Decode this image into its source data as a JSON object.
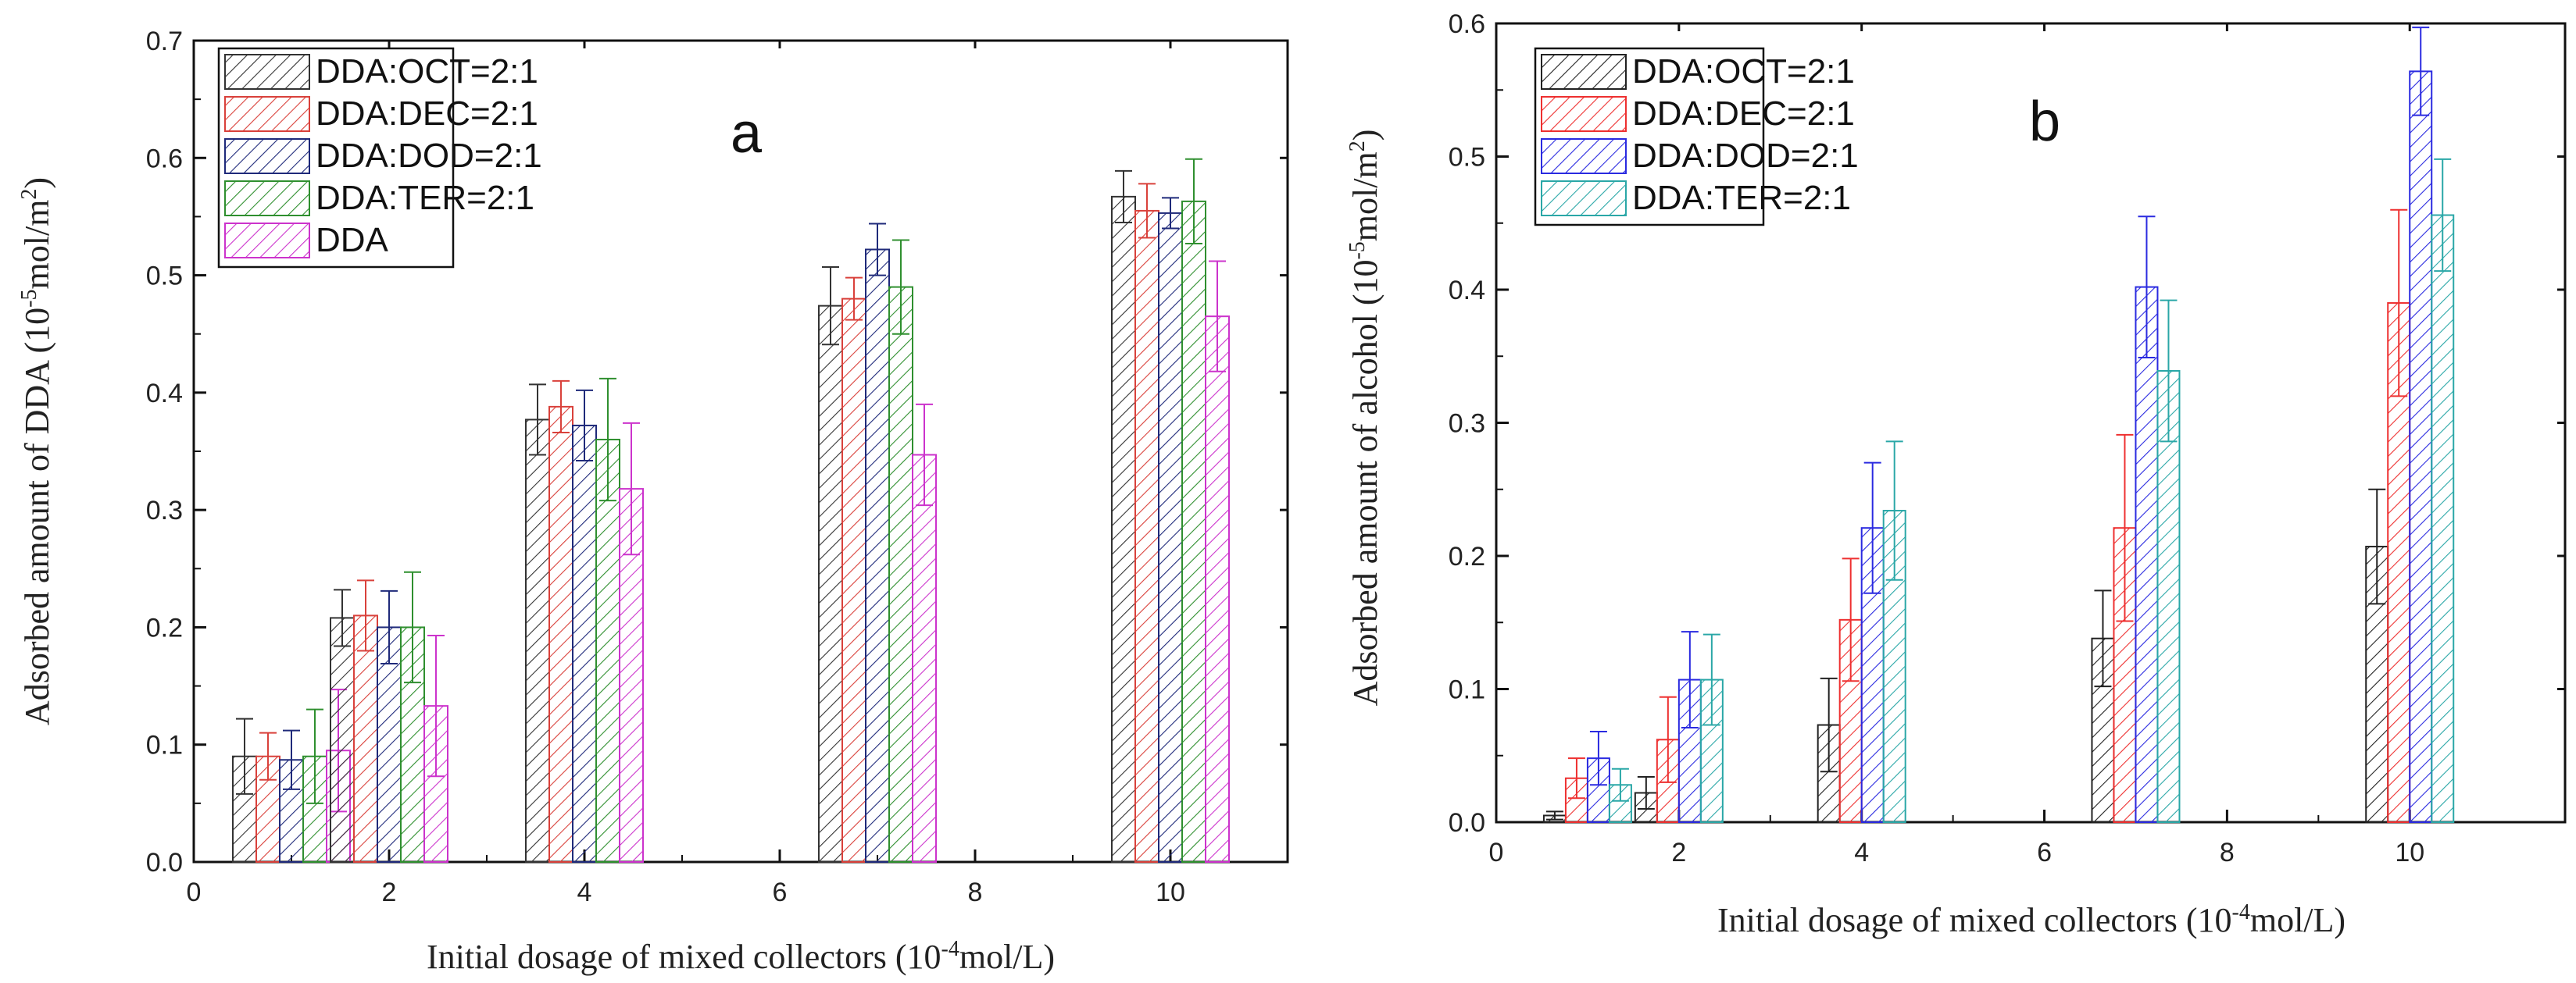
{
  "chart_data": [
    {
      "panel": "a",
      "type": "bar",
      "xlabel": "Initial dosage of mixed collectors (10-4mol/L)",
      "ylabel": "Adsorbed amount of DDA (10-5mol/m2)",
      "xlim": [
        0,
        11.2
      ],
      "ylim": [
        0,
        0.7
      ],
      "xticks": [
        0,
        2,
        4,
        6,
        8,
        10
      ],
      "yticks": [
        0.0,
        0.1,
        0.2,
        0.3,
        0.4,
        0.5,
        0.6,
        0.7
      ],
      "legend_position": "top-left",
      "x": [
        1,
        2,
        4,
        7,
        10
      ],
      "series": [
        {
          "name": "DDA:OCT=2:1",
          "color": "#333333",
          "values": [
            0.09,
            0.208,
            0.377,
            0.474,
            0.567
          ],
          "errors": [
            0.032,
            0.024,
            0.03,
            0.033,
            0.022
          ]
        },
        {
          "name": "DDA:DEC=2:1",
          "color": "#d9413b",
          "values": [
            0.09,
            0.21,
            0.388,
            0.48,
            0.555
          ],
          "errors": [
            0.02,
            0.03,
            0.022,
            0.018,
            0.023
          ]
        },
        {
          "name": "DDA:DOD=2:1",
          "color": "#1f2a7a",
          "values": [
            0.087,
            0.2,
            0.372,
            0.522,
            0.553
          ],
          "errors": [
            0.025,
            0.031,
            0.03,
            0.022,
            0.013
          ]
        },
        {
          "name": "DDA:TER=2:1",
          "color": "#2f8f2f",
          "values": [
            0.09,
            0.2,
            0.36,
            0.49,
            0.563
          ],
          "errors": [
            0.04,
            0.047,
            0.052,
            0.04,
            0.036
          ]
        },
        {
          "name": "DDA",
          "color": "#cc33cc",
          "values": [
            0.095,
            0.133,
            0.318,
            0.347,
            0.465
          ],
          "errors": [
            0.052,
            0.06,
            0.056,
            0.043,
            0.047
          ]
        }
      ]
    },
    {
      "panel": "b",
      "type": "bar",
      "xlabel": "Initial dosage of mixed collectors (10-4mol/L)",
      "ylabel": "Adsorbed amount of alcohol (10-5mol/m2)",
      "xlim": [
        0,
        11.7
      ],
      "ylim": [
        0,
        0.6
      ],
      "xticks": [
        0,
        2,
        4,
        6,
        8,
        10
      ],
      "yticks": [
        0.0,
        0.1,
        0.2,
        0.3,
        0.4,
        0.5,
        0.6
      ],
      "legend_position": "top-left",
      "x": [
        1,
        2,
        4,
        7,
        10
      ],
      "series": [
        {
          "name": "DDA:OCT=2:1",
          "color": "#222222",
          "values": [
            0.005,
            0.022,
            0.073,
            0.138,
            0.207
          ],
          "errors": [
            0.003,
            0.012,
            0.035,
            0.036,
            0.043
          ]
        },
        {
          "name": "DDA:DEC=2:1",
          "color": "#ee3030",
          "values": [
            0.033,
            0.062,
            0.152,
            0.221,
            0.39
          ],
          "errors": [
            0.015,
            0.032,
            0.046,
            0.07,
            0.07
          ]
        },
        {
          "name": "DDA:DOD=2:1",
          "color": "#2a2ae0",
          "values": [
            0.048,
            0.107,
            0.221,
            0.402,
            0.564
          ],
          "errors": [
            0.02,
            0.036,
            0.049,
            0.053,
            0.033
          ]
        },
        {
          "name": "DDA:TER=2:1",
          "color": "#2aa7a7",
          "values": [
            0.028,
            0.107,
            0.234,
            0.339,
            0.456
          ],
          "errors": [
            0.012,
            0.034,
            0.052,
            0.053,
            0.042
          ]
        }
      ]
    }
  ],
  "labels": {
    "panel_a": "a",
    "panel_b": "b",
    "xlabel_a_main": "Initial dosage of mixed collectors (10",
    "xlabel_a_sup": "-4",
    "xlabel_a_tail": "mol/L)",
    "ylabel_a_main": "Adsorbed amount of DDA (10",
    "ylabel_a_sup": "-5",
    "ylabel_a_mid": "mol/m",
    "ylabel_a_sup2": "2",
    "ylabel_a_tail": ")",
    "xlabel_b_main": "Initial dosage of mixed collectors (10",
    "xlabel_b_sup": "-4",
    "xlabel_b_tail": "mol/L)",
    "ylabel_b_main": "Adsorbed amount of alcohol (10",
    "ylabel_b_sup": "-5",
    "ylabel_b_mid": "mol/m",
    "ylabel_b_sup2": "2",
    "ylabel_b_tail": ")"
  }
}
